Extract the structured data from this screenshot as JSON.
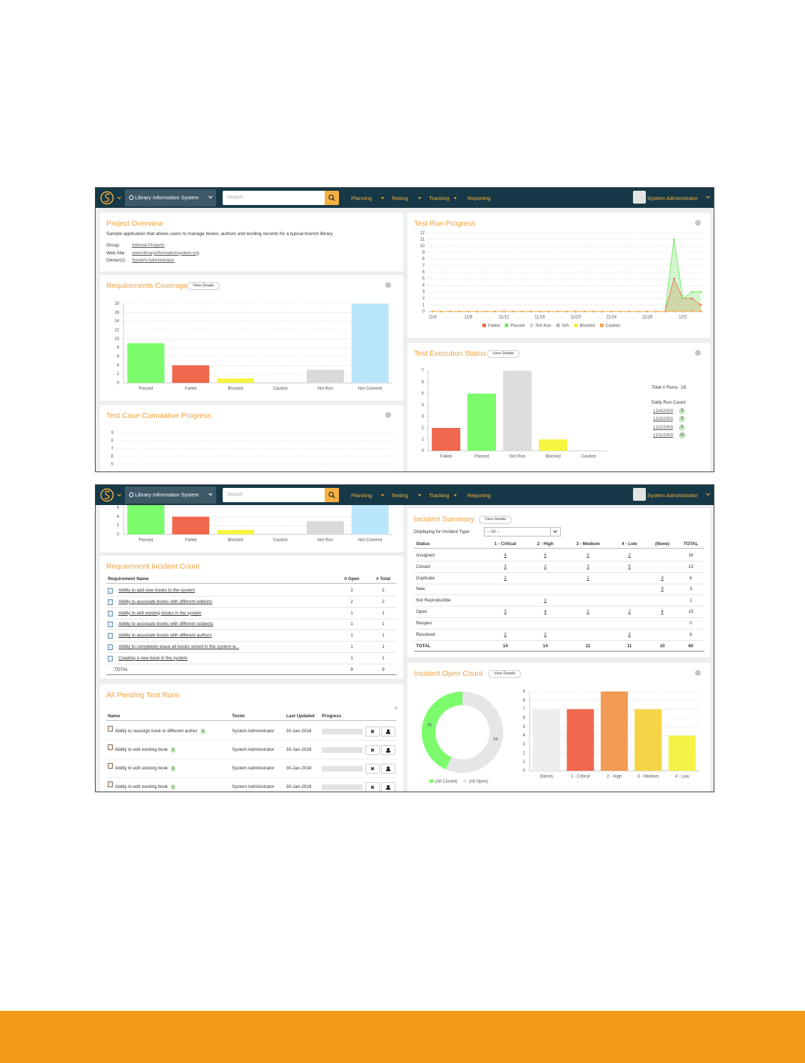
{
  "nav": {
    "project": "Library Information System",
    "search": "Search",
    "menu": [
      "Planning",
      "Testing",
      "Tracking",
      "Reporting"
    ],
    "user": "System Administrator"
  },
  "project_overview": {
    "title": "Project Overview",
    "description": "Sample application that allows users to manage books, authors and lending records for a typical branch library",
    "fields": [
      {
        "label": "Group:",
        "value": "Internal Projects"
      },
      {
        "label": "Web Site:",
        "value": "www.libraryinformationsystem.org"
      },
      {
        "label": "Owner(s):",
        "value": "System Administrator"
      }
    ]
  },
  "requirements_coverage": {
    "title": "Requirements Coverage",
    "button": "View Details",
    "chart": {
      "type": "bar",
      "categories": [
        "Passed",
        "Failed",
        "Blocked",
        "Caution",
        "Not Run",
        "Not Covered"
      ],
      "values": [
        9,
        4,
        1,
        0,
        3,
        18
      ],
      "colors": [
        "#7cfc6c",
        "#f0694e",
        "#f5f542",
        "#f5a34a",
        "#d9d9d9",
        "#b9e6fb"
      ],
      "ylim": [
        0,
        18
      ],
      "yticks": [
        0,
        2,
        4,
        6,
        8,
        10,
        12,
        14,
        16,
        18
      ],
      "grid": true
    }
  },
  "test_case_cumulative_progress": {
    "title": "Test Case Cumulative Progress",
    "chart": {
      "type": "line",
      "ylim": [
        5,
        9
      ],
      "yticks": [
        5,
        6,
        7,
        8,
        9
      ],
      "grid": true
    }
  },
  "test_run_progress": {
    "title": "Test Run Progress",
    "chart": {
      "type": "line",
      "categories": [
        "11/4",
        null,
        null,
        null,
        "11/8",
        null,
        null,
        null,
        "11/12",
        null,
        null,
        null,
        "11/16",
        null,
        null,
        null,
        "11/20",
        null,
        null,
        null,
        "11/24",
        null,
        null,
        null,
        "11/28",
        null,
        null,
        null,
        "12/2",
        null,
        null
      ],
      "series": [
        {
          "name": "Failed",
          "color": "#f0694e",
          "fill": true,
          "values": [
            0,
            0,
            0,
            0,
            0,
            0,
            0,
            0,
            0,
            0,
            0,
            0,
            0,
            0,
            0,
            0,
            0,
            0,
            0,
            0,
            0,
            0,
            0,
            0,
            0,
            0,
            0,
            5,
            2,
            2,
            1
          ]
        },
        {
          "name": "Passed",
          "color": "#6fe85f",
          "fill": true,
          "values": [
            0,
            0,
            0,
            0,
            0,
            0,
            0,
            0,
            0,
            0,
            0,
            0,
            0,
            0,
            0,
            0,
            0,
            0,
            0,
            0,
            0,
            0,
            0,
            0,
            0,
            0,
            0,
            11,
            2,
            3,
            3
          ]
        },
        {
          "name": "Not Run",
          "color": "#d6d6d6",
          "values": [
            0,
            0,
            0,
            0,
            0,
            0,
            0,
            0,
            0,
            0,
            0,
            0,
            0,
            0,
            0,
            0,
            0,
            0,
            0,
            0,
            0,
            0,
            0,
            0,
            0,
            0,
            0,
            0,
            0,
            0,
            0
          ]
        },
        {
          "name": "N/A",
          "color": "#b8b8b8",
          "values": [
            0,
            0,
            0,
            0,
            0,
            0,
            0,
            0,
            0,
            0,
            0,
            0,
            0,
            0,
            0,
            0,
            0,
            0,
            0,
            0,
            0,
            0,
            0,
            0,
            0,
            0,
            0,
            0,
            0,
            0,
            0
          ]
        },
        {
          "name": "Blocked",
          "color": "#eeee3a",
          "values": [
            0,
            0,
            0,
            0,
            0,
            0,
            0,
            0,
            0,
            0,
            0,
            0,
            0,
            0,
            0,
            0,
            0,
            0,
            0,
            0,
            0,
            0,
            0,
            0,
            0,
            0,
            0,
            0,
            0,
            0,
            0
          ]
        },
        {
          "name": "Caution",
          "color": "#f5a34a",
          "values": [
            0,
            0,
            0,
            0,
            0,
            0,
            0,
            0,
            0,
            0,
            0,
            0,
            0,
            0,
            0,
            0,
            0,
            0,
            0,
            0,
            0,
            0,
            0,
            0,
            0,
            0,
            0,
            0,
            0,
            0,
            0
          ]
        }
      ],
      "ylim": [
        0,
        12
      ],
      "yticks": [
        0,
        1,
        2,
        3,
        4,
        5,
        6,
        7,
        8,
        9,
        10,
        11,
        12
      ],
      "grid": true
    }
  },
  "test_execution_status": {
    "title": "Test Execution Status",
    "button": "View Details",
    "chart": {
      "type": "bar",
      "categories": [
        "Failed",
        "Passed",
        "Not Run",
        "Blocked",
        "Caution"
      ],
      "values": [
        2,
        5,
        7,
        1,
        0
      ],
      "colors": [
        "#f0694e",
        "#7cfc6c",
        "#dcdcdc",
        "#f5f542",
        "#f5a34a"
      ],
      "ylim": [
        0,
        7
      ],
      "yticks": [
        0,
        1,
        2,
        3,
        4,
        5,
        6,
        7
      ],
      "grid": false
    },
    "total_label": "Total # Runs:",
    "total": 19,
    "daily_label": "Daily Run Count:",
    "daily": [
      {
        "date": "12/4/2003",
        "count": 3
      },
      {
        "date": "12/3/2003",
        "count": 3
      },
      {
        "date": "12/2/2003",
        "count": 2
      },
      {
        "date": "12/1/2003",
        "count": 11
      }
    ]
  },
  "requirement_incident_count": {
    "title": "Requirement Incident Count",
    "columns": [
      "Requirement Name",
      "# Open",
      "# Total"
    ],
    "rows": [
      [
        "Ability to add new books to the system",
        2,
        2
      ],
      [
        "Ability to associate books with different editions",
        2,
        2
      ],
      [
        "Ability to edit existing books in the system",
        1,
        1
      ],
      [
        "Ability to associate books with different subjects",
        1,
        1
      ],
      [
        "Ability to associate books with different authors",
        1,
        1
      ],
      [
        "Ability to completely erase all books stored in the system w...",
        1,
        1
      ],
      [
        "Creating a new book in the system",
        1,
        1
      ]
    ],
    "total": [
      "TOTAL",
      9,
      9
    ]
  },
  "pending_test_runs": {
    "title": "All Pending Test Runs",
    "columns": [
      "Name",
      "Tester",
      "Last Updated",
      "Progress"
    ],
    "rows": [
      {
        "name": "Ability to reassign book to different author",
        "count": 1,
        "tester": "System Administrator",
        "updated": "30-Jan-2018"
      },
      {
        "name": "Ability to edit existing book",
        "count": 1,
        "tester": "System Administrator",
        "updated": "30-Jan-2018"
      },
      {
        "name": "Ability to edit existing book",
        "count": 1,
        "tester": "System Administrator",
        "updated": "30-Jan-2018"
      },
      {
        "name": "Ability to edit existing book",
        "count": 1,
        "tester": "System Administrator",
        "updated": "30-Jan-2018"
      }
    ]
  },
  "incident_summary": {
    "title": "Incident Summary",
    "button": "View Details",
    "filter_label": "Displaying for Incident Type:",
    "filter_value": "-- All --",
    "columns": [
      "Status",
      "1 - Critical",
      "2 - High",
      "3 - Medium",
      "4 - Low",
      "(None)",
      "TOTAL"
    ],
    "rows": [
      [
        "Assigned",
        4,
        5,
        5,
        2,
        null,
        16
      ],
      [
        "Closed",
        3,
        2,
        3,
        5,
        null,
        13
      ],
      [
        "Duplicate",
        2,
        null,
        1,
        null,
        3,
        6
      ],
      [
        "New",
        null,
        null,
        null,
        null,
        3,
        3
      ],
      [
        "Not Reproducible",
        null,
        1,
        null,
        null,
        null,
        1
      ],
      [
        "Open",
        3,
        4,
        2,
        2,
        4,
        15
      ],
      [
        "Reopen",
        null,
        null,
        null,
        null,
        null,
        0
      ],
      [
        "Resolved",
        2,
        2,
        null,
        2,
        null,
        6
      ]
    ],
    "total": [
      "TOTAL",
      14,
      14,
      11,
      11,
      10,
      60
    ]
  },
  "incident_open_count": {
    "title": "Incident Open Count",
    "button": "View Details",
    "donut": {
      "type": "pie",
      "labels": [
        "(All Closed)",
        "(All Open)"
      ],
      "values": [
        26,
        34
      ],
      "colors": [
        "#7cfc6c",
        "#e6e6e6"
      ]
    },
    "chart": {
      "type": "bar",
      "categories": [
        "(None)",
        "1 - Critical",
        "2 - High",
        "3 - Medium",
        "4 - Low"
      ],
      "values": [
        7,
        7,
        9,
        7,
        4
      ],
      "colors": [
        "#eeeeee",
        "#f0694e",
        "#f29b55",
        "#f5d547",
        "#f3f347"
      ],
      "ylim": [
        0,
        9
      ],
      "yticks": [
        0,
        1,
        2,
        3,
        4,
        5,
        6,
        7,
        8,
        9
      ],
      "grid": true
    }
  }
}
